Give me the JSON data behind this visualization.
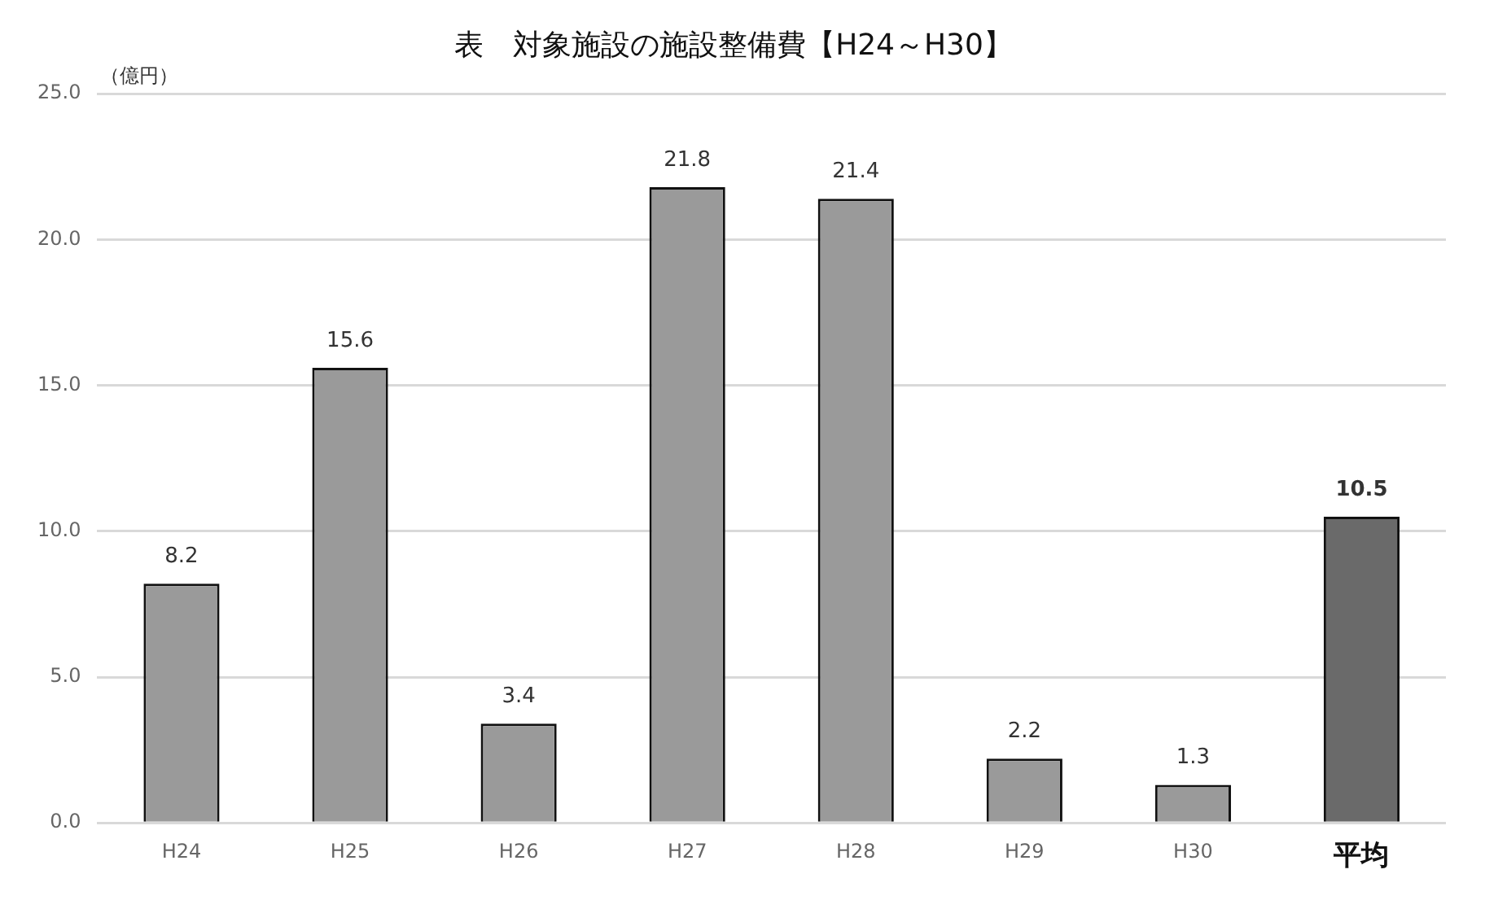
{
  "chart_data": {
    "type": "bar",
    "title": "表　対象施設の施設整備費【H24～H30】",
    "ylabel": "（億円）",
    "categories": [
      "H24",
      "H25",
      "H26",
      "H27",
      "H28",
      "H29",
      "H30",
      "平均"
    ],
    "values": [
      8.2,
      15.6,
      3.4,
      21.8,
      21.4,
      2.2,
      1.3,
      10.5
    ],
    "colors": [
      "#9a9a9a",
      "#9a9a9a",
      "#9a9a9a",
      "#9a9a9a",
      "#9a9a9a",
      "#9a9a9a",
      "#9a9a9a",
      "#6a6a6a"
    ],
    "ylim": [
      0,
      25
    ],
    "yticks": [
      {
        "value": 0,
        "label": "0.0"
      },
      {
        "value": 5,
        "label": "5.0"
      },
      {
        "value": 10,
        "label": "10.0"
      },
      {
        "value": 15,
        "label": "15.0"
      },
      {
        "value": 20,
        "label": "20.0"
      },
      {
        "value": 25,
        "label": "25.0"
      }
    ],
    "grid": "y",
    "data_labels": true,
    "legend": false
  }
}
